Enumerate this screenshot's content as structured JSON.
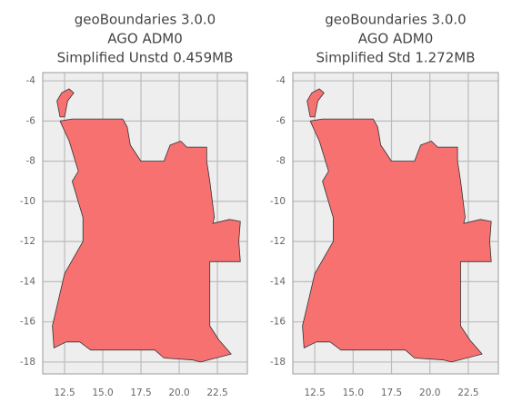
{
  "chart_data": [
    {
      "type": "map",
      "title": [
        "geoBoundaries 3.0.0",
        "AGO ADM0",
        "Simplified Unstd 0.459MB"
      ],
      "xlim": [
        11.07,
        24.46
      ],
      "ylim": [
        -18.59,
        -3.59
      ],
      "xticks": [
        12.5,
        {
          "value": 15,
          "label": "15.0"
        },
        17.5,
        {
          "value": 20,
          "label": "20.0"
        },
        22.5
      ],
      "yticks": [
        -4,
        -6,
        -8,
        -10,
        -12,
        -14,
        -16,
        -18
      ],
      "grid": true,
      "color": "#f77171",
      "shape": {
        "x": [
          12.2,
          12.0,
          12.3,
          12.8,
          13.1,
          12.7,
          12.5,
          12.2,
          null,
          12.2,
          13.0,
          16.3,
          16.6,
          16.8,
          17.5,
          19.0,
          19.4,
          20.1,
          20.5,
          21.8,
          21.8,
          22.0,
          22.3,
          22.2,
          23.3,
          24.0,
          23.9,
          24.0,
          22.0,
          22.0,
          22.6,
          23.4,
          21.4,
          20.9,
          19.0,
          18.4,
          14.2,
          13.5,
          12.6,
          11.8,
          11.7,
          12.1,
          12.5,
          13.7,
          13.7,
          13.0,
          13.4,
          12.8,
          12.2
        ],
        "y": [
          -5.8,
          -5.0,
          -4.6,
          -4.4,
          -4.6,
          -5.0,
          -5.8,
          -5.8,
          null,
          -6.0,
          -5.9,
          -5.9,
          -6.3,
          -7.2,
          -8.0,
          -8.0,
          -7.2,
          -7.0,
          -7.3,
          -7.3,
          -8.0,
          -9.0,
          -10.8,
          -11.1,
          -10.9,
          -11.0,
          -12.0,
          -13.0,
          -13.0,
          -16.2,
          -16.9,
          -17.6,
          -18.0,
          -17.9,
          -17.8,
          -17.4,
          -17.4,
          -17.0,
          -17.0,
          -17.3,
          -16.2,
          -14.9,
          -13.6,
          -12.0,
          -10.8,
          -9.0,
          -8.5,
          -7.0,
          -6.0
        ]
      }
    },
    {
      "type": "map",
      "title": [
        "geoBoundaries 3.0.0",
        "AGO ADM0",
        "Simplified Std 1.272MB"
      ],
      "xlim": [
        11.07,
        24.46
      ],
      "ylim": [
        -18.59,
        -3.59
      ],
      "xticks": [
        12.5,
        {
          "value": 15,
          "label": "15.0"
        },
        17.5,
        {
          "value": 20,
          "label": "20.0"
        },
        22.5
      ],
      "yticks": [
        -4,
        -6,
        -8,
        -10,
        -12,
        -14,
        -16,
        -18
      ],
      "grid": true,
      "color": "#f77171",
      "shape": {
        "x": [
          12.2,
          12.0,
          12.3,
          12.8,
          13.1,
          12.7,
          12.5,
          12.2,
          null,
          12.2,
          13.0,
          16.3,
          16.6,
          16.8,
          17.5,
          19.0,
          19.4,
          20.1,
          20.5,
          21.8,
          21.8,
          22.0,
          22.3,
          22.2,
          23.3,
          24.0,
          23.9,
          24.0,
          22.0,
          22.0,
          22.6,
          23.4,
          21.4,
          20.9,
          19.0,
          18.4,
          14.2,
          13.5,
          12.6,
          11.8,
          11.7,
          12.1,
          12.5,
          13.7,
          13.7,
          13.0,
          13.4,
          12.8,
          12.2
        ],
        "y": [
          -5.8,
          -5.0,
          -4.6,
          -4.4,
          -4.6,
          -5.0,
          -5.8,
          -5.8,
          null,
          -6.0,
          -5.9,
          -5.9,
          -6.3,
          -7.2,
          -8.0,
          -8.0,
          -7.2,
          -7.0,
          -7.3,
          -7.3,
          -8.0,
          -9.0,
          -10.8,
          -11.1,
          -10.9,
          -11.0,
          -12.0,
          -13.0,
          -13.0,
          -16.2,
          -16.9,
          -17.6,
          -18.0,
          -17.9,
          -17.8,
          -17.4,
          -17.4,
          -17.0,
          -17.0,
          -17.3,
          -16.2,
          -14.9,
          -13.6,
          -12.0,
          -10.8,
          -9.0,
          -8.5,
          -7.0,
          -6.0
        ]
      }
    }
  ]
}
